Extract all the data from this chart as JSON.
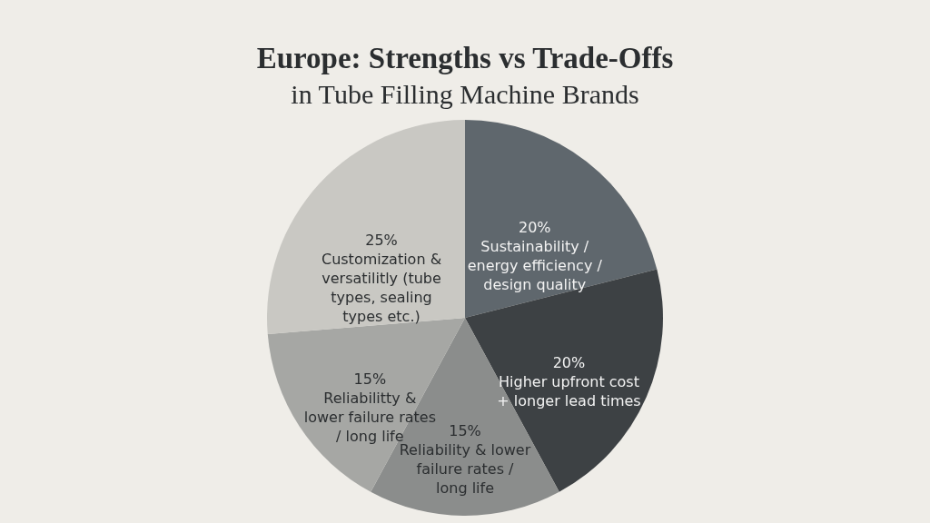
{
  "chart_data": {
    "type": "pie",
    "title": "Europe: Strengths vs Trade-Offs",
    "subtitle": "in Tube Filling Machine Brands",
    "categories": [
      "Sustainability / energy efficiency / design quality",
      "Higher upfront cost + longer lead times",
      "Reliability & lower failure rates / long life",
      "Reliabilitty & lower failure rates / long life",
      "Customization & versatilitly (tube types, sealing types etc.)"
    ],
    "values": [
      20,
      20,
      15,
      15,
      25
    ],
    "value_labels": [
      "20%",
      "20%",
      "15%",
      "15%",
      "25%"
    ],
    "colors": [
      "#5f676d",
      "#3d4144",
      "#8b8d8c",
      "#a6a7a4",
      "#c9c8c3"
    ],
    "legend": false
  }
}
